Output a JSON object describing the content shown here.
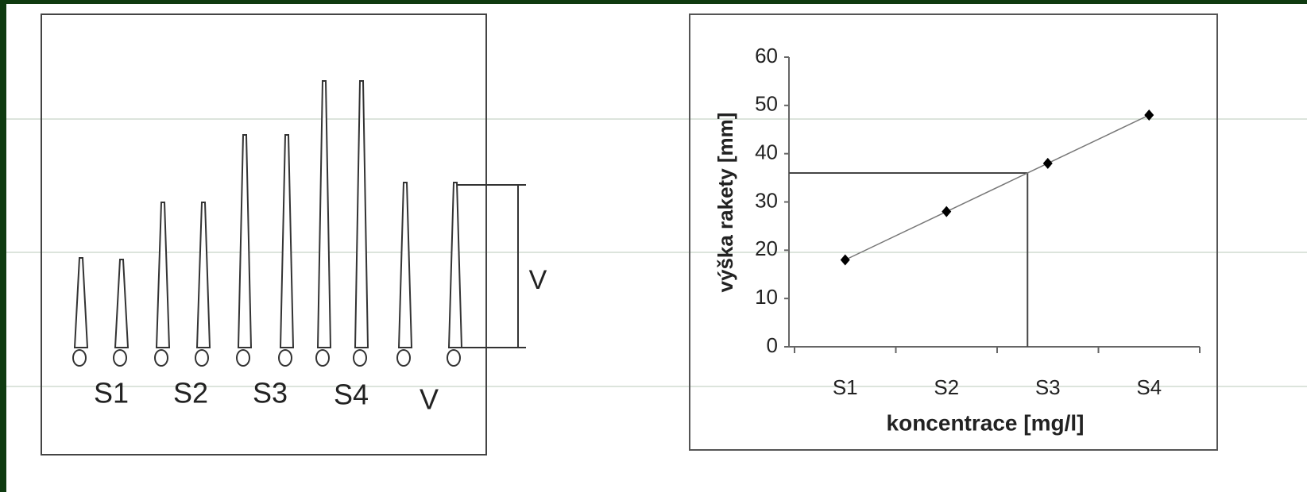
{
  "diagram": {
    "labels": [
      "S1",
      "S2",
      "S3",
      "S4",
      "V"
    ],
    "bracket_label": "V"
  },
  "chart_data": {
    "type": "line",
    "categories": [
      "S1",
      "S2",
      "S3",
      "S4"
    ],
    "series": [
      {
        "values": [
          18,
          28,
          38,
          48
        ],
        "color": "#000000"
      }
    ],
    "ylim": [
      0,
      60
    ],
    "yticks": [
      0,
      10,
      20,
      30,
      40,
      50,
      60
    ],
    "xlabel": "koncentrace [mg/l]",
    "ylabel": "výška rakety [mm]",
    "guide_y": 36
  }
}
